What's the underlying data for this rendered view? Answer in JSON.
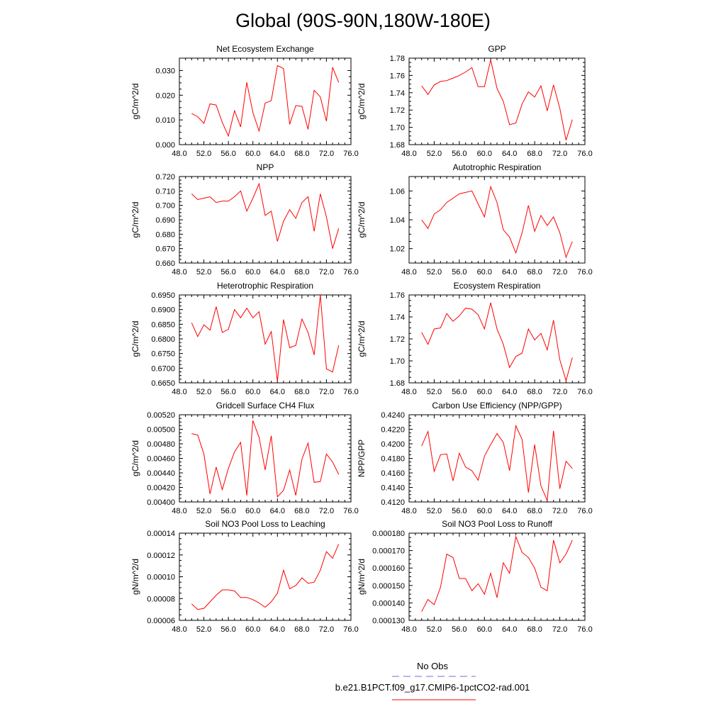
{
  "page": {
    "title": "Global (90S-90N,180W-180E)",
    "legend": [
      {
        "label": "No Obs",
        "color": "#6f6fd8",
        "style": "dashed"
      },
      {
        "label": "b.e21.B1PCT.f09_g17.CMIP6-1pctCO2-rad.001",
        "color": "#ff0000",
        "style": "solid"
      }
    ]
  },
  "chart_data": [
    {
      "type": "line",
      "title": "Net Ecosystem Exchange",
      "ylabel": "gC/m^2/d",
      "xlim": [
        48,
        76
      ],
      "ylim": [
        0.0,
        0.035
      ],
      "xticks": [
        "48.0",
        "52.0",
        "56.0",
        "60.0",
        "64.0",
        "68.0",
        "72.0",
        "76.0"
      ],
      "yticks": [
        {
          "v": 0.0,
          "t": "0.000"
        },
        {
          "v": 0.01,
          "t": "0.010"
        },
        {
          "v": 0.02,
          "t": "0.020"
        },
        {
          "v": 0.03,
          "t": "0.030"
        }
      ],
      "series": [
        {
          "color": "#ff0000",
          "x": [
            50,
            51,
            52,
            53,
            54,
            55,
            56,
            57,
            58,
            59,
            60,
            61,
            62,
            63,
            64,
            65,
            66,
            67,
            68,
            69,
            70,
            71,
            72,
            73,
            74
          ],
          "y": [
            0.0126,
            0.0113,
            0.0086,
            0.0165,
            0.016,
            0.009,
            0.0035,
            0.0137,
            0.0072,
            0.0252,
            0.013,
            0.0055,
            0.0168,
            0.0178,
            0.032,
            0.0308,
            0.0082,
            0.0158,
            0.0155,
            0.0062,
            0.022,
            0.0193,
            0.0095,
            0.0313,
            0.0252
          ]
        }
      ]
    },
    {
      "type": "line",
      "title": "GPP",
      "ylabel": "gC/m^2/d",
      "xlim": [
        48,
        76
      ],
      "ylim": [
        1.68,
        1.78
      ],
      "xticks": [
        "48.0",
        "52.0",
        "56.0",
        "60.0",
        "64.0",
        "68.0",
        "72.0",
        "76.0"
      ],
      "yticks": [
        {
          "v": 1.68,
          "t": "1.68"
        },
        {
          "v": 1.7,
          "t": "1.70"
        },
        {
          "v": 1.72,
          "t": "1.72"
        },
        {
          "v": 1.74,
          "t": "1.74"
        },
        {
          "v": 1.76,
          "t": "1.76"
        },
        {
          "v": 1.78,
          "t": "1.78"
        }
      ],
      "series": [
        {
          "color": "#ff0000",
          "x": [
            50,
            51,
            52,
            53,
            54,
            55,
            56,
            57,
            58,
            59,
            60,
            61,
            62,
            63,
            64,
            65,
            66,
            67,
            68,
            69,
            70,
            71,
            72,
            73,
            74
          ],
          "y": [
            1.748,
            1.738,
            1.749,
            1.753,
            1.754,
            1.757,
            1.76,
            1.764,
            1.769,
            1.747,
            1.747,
            1.778,
            1.745,
            1.73,
            1.703,
            1.705,
            1.727,
            1.741,
            1.735,
            1.748,
            1.719,
            1.749,
            1.722,
            1.685,
            1.709
          ]
        }
      ]
    },
    {
      "type": "line",
      "title": "NPP",
      "ylabel": "gC/m^2/d",
      "xlim": [
        48,
        76
      ],
      "ylim": [
        0.66,
        0.72
      ],
      "xticks": [
        "48.0",
        "52.0",
        "56.0",
        "60.0",
        "64.0",
        "68.0",
        "72.0",
        "76.0"
      ],
      "yticks": [
        {
          "v": 0.66,
          "t": "0.660"
        },
        {
          "v": 0.67,
          "t": "0.670"
        },
        {
          "v": 0.68,
          "t": "0.680"
        },
        {
          "v": 0.69,
          "t": "0.690"
        },
        {
          "v": 0.7,
          "t": "0.700"
        },
        {
          "v": 0.71,
          "t": "0.710"
        },
        {
          "v": 0.72,
          "t": "0.720"
        }
      ],
      "series": [
        {
          "color": "#ff0000",
          "x": [
            50,
            51,
            52,
            53,
            54,
            55,
            56,
            57,
            58,
            59,
            60,
            61,
            62,
            63,
            64,
            65,
            66,
            67,
            68,
            69,
            70,
            71,
            72,
            73,
            74
          ],
          "y": [
            0.708,
            0.704,
            0.705,
            0.706,
            0.702,
            0.703,
            0.703,
            0.706,
            0.71,
            0.696,
            0.705,
            0.715,
            0.693,
            0.696,
            0.675,
            0.689,
            0.697,
            0.691,
            0.702,
            0.706,
            0.682,
            0.708,
            0.692,
            0.67,
            0.684
          ]
        }
      ]
    },
    {
      "type": "line",
      "title": "Autotrophic Respiration",
      "ylabel": "gC/m^2/d",
      "xlim": [
        48,
        76
      ],
      "ylim": [
        1.01,
        1.07
      ],
      "xticks": [
        "48.0",
        "52.0",
        "56.0",
        "60.0",
        "64.0",
        "68.0",
        "72.0",
        "76.0"
      ],
      "yticks": [
        {
          "v": 1.02,
          "t": "1.02"
        },
        {
          "v": 1.04,
          "t": "1.04"
        },
        {
          "v": 1.06,
          "t": "1.06"
        }
      ],
      "series": [
        {
          "color": "#ff0000",
          "x": [
            50,
            51,
            52,
            53,
            54,
            55,
            56,
            57,
            58,
            59,
            60,
            61,
            62,
            63,
            64,
            65,
            66,
            67,
            68,
            69,
            70,
            71,
            72,
            73,
            74
          ],
          "y": [
            1.04,
            1.034,
            1.044,
            1.047,
            1.052,
            1.055,
            1.058,
            1.059,
            1.06,
            1.051,
            1.042,
            1.063,
            1.052,
            1.033,
            1.028,
            1.017,
            1.031,
            1.05,
            1.032,
            1.043,
            1.036,
            1.042,
            1.031,
            1.014,
            1.025
          ]
        }
      ]
    },
    {
      "type": "line",
      "title": "Heterotrophic Respiration",
      "ylabel": "gC/m^2/d",
      "xlim": [
        48,
        76
      ],
      "ylim": [
        0.665,
        0.695
      ],
      "xticks": [
        "48.0",
        "52.0",
        "56.0",
        "60.0",
        "64.0",
        "68.0",
        "72.0",
        "76.0"
      ],
      "yticks": [
        {
          "v": 0.665,
          "t": "0.6650"
        },
        {
          "v": 0.67,
          "t": "0.6700"
        },
        {
          "v": 0.675,
          "t": "0.6750"
        },
        {
          "v": 0.68,
          "t": "0.6800"
        },
        {
          "v": 0.685,
          "t": "0.6850"
        },
        {
          "v": 0.69,
          "t": "0.6900"
        },
        {
          "v": 0.695,
          "t": "0.6950"
        }
      ],
      "series": [
        {
          "color": "#ff0000",
          "x": [
            50,
            51,
            52,
            53,
            54,
            55,
            56,
            57,
            58,
            59,
            60,
            61,
            62,
            63,
            64,
            65,
            66,
            67,
            68,
            69,
            70,
            71,
            72,
            73,
            74
          ],
          "y": [
            0.6855,
            0.6808,
            0.6848,
            0.683,
            0.691,
            0.6822,
            0.6833,
            0.69,
            0.6872,
            0.6905,
            0.6872,
            0.6893,
            0.6782,
            0.6825,
            0.6655,
            0.6866,
            0.677,
            0.6778,
            0.6868,
            0.6822,
            0.6745,
            0.695,
            0.6698,
            0.6687,
            0.6778
          ]
        }
      ]
    },
    {
      "type": "line",
      "title": "Ecosystem Respiration",
      "ylabel": "gC/m^2/d",
      "xlim": [
        48,
        76
      ],
      "ylim": [
        1.68,
        1.76
      ],
      "xticks": [
        "48.0",
        "52.0",
        "56.0",
        "60.0",
        "64.0",
        "68.0",
        "72.0",
        "76.0"
      ],
      "yticks": [
        {
          "v": 1.68,
          "t": "1.68"
        },
        {
          "v": 1.7,
          "t": "1.70"
        },
        {
          "v": 1.72,
          "t": "1.72"
        },
        {
          "v": 1.74,
          "t": "1.74"
        },
        {
          "v": 1.76,
          "t": "1.76"
        }
      ],
      "series": [
        {
          "color": "#ff0000",
          "x": [
            50,
            51,
            52,
            53,
            54,
            55,
            56,
            57,
            58,
            59,
            60,
            61,
            62,
            63,
            64,
            65,
            66,
            67,
            68,
            69,
            70,
            71,
            72,
            73,
            74
          ],
          "y": [
            1.726,
            1.715,
            1.729,
            1.73,
            1.743,
            1.736,
            1.741,
            1.748,
            1.747,
            1.742,
            1.729,
            1.753,
            1.729,
            1.715,
            1.694,
            1.704,
            1.707,
            1.729,
            1.719,
            1.725,
            1.71,
            1.737,
            1.701,
            1.682,
            1.703
          ]
        }
      ]
    },
    {
      "type": "line",
      "title": "Gridcell Surface CH4 Flux",
      "ylabel": "gC/m^2/d",
      "xlim": [
        48,
        76
      ],
      "ylim": [
        0.004,
        0.0052
      ],
      "xticks": [
        "48.0",
        "52.0",
        "56.0",
        "60.0",
        "64.0",
        "68.0",
        "72.0",
        "76.0"
      ],
      "yticks": [
        {
          "v": 0.004,
          "t": "0.00400"
        },
        {
          "v": 0.0042,
          "t": "0.00420"
        },
        {
          "v": 0.0044,
          "t": "0.00440"
        },
        {
          "v": 0.0046,
          "t": "0.00460"
        },
        {
          "v": 0.0048,
          "t": "0.00480"
        },
        {
          "v": 0.005,
          "t": "0.00500"
        },
        {
          "v": 0.0052,
          "t": "0.00520"
        }
      ],
      "series": [
        {
          "color": "#ff0000",
          "x": [
            50,
            51,
            52,
            53,
            54,
            55,
            56,
            57,
            58,
            59,
            60,
            61,
            62,
            63,
            64,
            65,
            66,
            67,
            68,
            69,
            70,
            71,
            72,
            73,
            74
          ],
          "y": [
            0.00494,
            0.00492,
            0.00466,
            0.00411,
            0.00448,
            0.00417,
            0.00446,
            0.00469,
            0.00482,
            0.00409,
            0.00512,
            0.00489,
            0.00444,
            0.00491,
            0.00407,
            0.00416,
            0.00444,
            0.00409,
            0.00459,
            0.00481,
            0.00427,
            0.00428,
            0.00466,
            0.00455,
            0.00438
          ]
        }
      ]
    },
    {
      "type": "line",
      "title": "Carbon Use Efficiency (NPP/GPP)",
      "ylabel": "NPP/GPP",
      "xlim": [
        48,
        76
      ],
      "ylim": [
        0.412,
        0.424
      ],
      "xticks": [
        "48.0",
        "52.0",
        "56.0",
        "60.0",
        "64.0",
        "68.0",
        "72.0",
        "76.0"
      ],
      "yticks": [
        {
          "v": 0.412,
          "t": "0.4120"
        },
        {
          "v": 0.414,
          "t": "0.4140"
        },
        {
          "v": 0.416,
          "t": "0.4160"
        },
        {
          "v": 0.418,
          "t": "0.4180"
        },
        {
          "v": 0.42,
          "t": "0.4200"
        },
        {
          "v": 0.422,
          "t": "0.4220"
        },
        {
          "v": 0.424,
          "t": "0.4240"
        }
      ],
      "series": [
        {
          "color": "#ff0000",
          "x": [
            50,
            51,
            52,
            53,
            54,
            55,
            56,
            57,
            58,
            59,
            60,
            61,
            62,
            63,
            64,
            65,
            66,
            67,
            68,
            69,
            70,
            71,
            72,
            73,
            74
          ],
          "y": [
            0.4197,
            0.4217,
            0.4162,
            0.4185,
            0.4186,
            0.4149,
            0.4187,
            0.4168,
            0.4163,
            0.415,
            0.4183,
            0.4199,
            0.4214,
            0.4202,
            0.4163,
            0.4225,
            0.4206,
            0.4133,
            0.4199,
            0.4142,
            0.4122,
            0.4218,
            0.4138,
            0.4176,
            0.4166
          ]
        }
      ]
    },
    {
      "type": "line",
      "title": "Soil NO3 Pool Loss to Leaching",
      "ylabel": "gN/m^2/d",
      "xlim": [
        48,
        76
      ],
      "ylim": [
        6e-05,
        0.00014
      ],
      "xticks": [
        "48.0",
        "52.0",
        "56.0",
        "60.0",
        "64.0",
        "68.0",
        "72.0",
        "76.0"
      ],
      "yticks": [
        {
          "v": 6e-05,
          "t": "0.00006"
        },
        {
          "v": 8e-05,
          "t": "0.00008"
        },
        {
          "v": 0.0001,
          "t": "0.00010"
        },
        {
          "v": 0.00012,
          "t": "0.00012"
        },
        {
          "v": 0.00014,
          "t": "0.00014"
        }
      ],
      "series": [
        {
          "color": "#ff0000",
          "x": [
            50,
            51,
            52,
            53,
            54,
            55,
            56,
            57,
            58,
            59,
            60,
            61,
            62,
            63,
            64,
            65,
            66,
            67,
            68,
            69,
            70,
            71,
            72,
            73,
            74
          ],
          "y": [
            7.5e-05,
            7e-05,
            7.1e-05,
            7.7e-05,
            8.3e-05,
            8.8e-05,
            8.8e-05,
            8.7e-05,
            8.1e-05,
            8.1e-05,
            7.9e-05,
            7.6e-05,
            7.2e-05,
            7.7e-05,
            8.5e-05,
            0.000106,
            8.9e-05,
            9.2e-05,
            9.9e-05,
            9.4e-05,
            9.5e-05,
            0.000106,
            0.000123,
            0.000117,
            0.00013
          ]
        }
      ]
    },
    {
      "type": "line",
      "title": "Soil NO3 Pool Loss to Runoff",
      "ylabel": "gN/m^2/d",
      "xlim": [
        48,
        76
      ],
      "ylim": [
        0.00013,
        0.00018
      ],
      "xticks": [
        "48.0",
        "52.0",
        "56.0",
        "60.0",
        "64.0",
        "68.0",
        "72.0",
        "76.0"
      ],
      "yticks": [
        {
          "v": 0.00013,
          "t": "0.000130"
        },
        {
          "v": 0.00014,
          "t": "0.000140"
        },
        {
          "v": 0.00015,
          "t": "0.000150"
        },
        {
          "v": 0.00016,
          "t": "0.000160"
        },
        {
          "v": 0.00017,
          "t": "0.000170"
        },
        {
          "v": 0.00018,
          "t": "0.000180"
        }
      ],
      "series": [
        {
          "color": "#ff0000",
          "x": [
            50,
            51,
            52,
            53,
            54,
            55,
            56,
            57,
            58,
            59,
            60,
            61,
            62,
            63,
            64,
            65,
            66,
            67,
            68,
            69,
            70,
            71,
            72,
            73,
            74
          ],
          "y": [
            0.000135,
            0.000142,
            0.000139,
            0.000149,
            0.000168,
            0.000166,
            0.000154,
            0.000154,
            0.000147,
            0.000151,
            0.000145,
            0.000157,
            0.000143,
            0.000163,
            0.000157,
            0.000178,
            0.000169,
            0.000166,
            0.00016,
            0.000149,
            0.000147,
            0.000176,
            0.000163,
            0.000168,
            0.000176
          ]
        }
      ]
    }
  ]
}
